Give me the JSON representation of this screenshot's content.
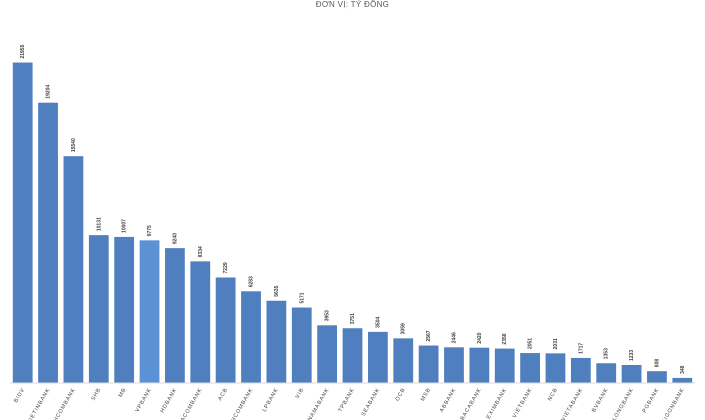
{
  "chart_data": {
    "type": "bar",
    "title": "ĐƠN VỊ: TỶ ĐỒNG",
    "categories": [
      "BIDV",
      "VIETINBANK",
      "TECHCOMBANK",
      "SHB",
      "MB",
      "VPBANK",
      "HDBANK",
      "SACOMBANK",
      "ACB",
      "TECHCOMBANK",
      "LPBANK",
      "VIB",
      "NAMABANK",
      "TPBANK",
      "SEABANK",
      "OCB",
      "MSB",
      "ABBANK",
      "BACABANK",
      "EXIMBANK",
      "VIETBANK",
      "NCB",
      "VIETABANK",
      "BVBANK",
      "KIENLONGBANK",
      "PGBANK",
      "SAIGONBANK"
    ],
    "values": [
      21955,
      19204,
      15540,
      10131,
      10007,
      9775,
      9240,
      8334,
      7229,
      6283,
      5635,
      5171,
      3953,
      3751,
      3504,
      3059,
      2567,
      2446,
      2420,
      2358,
      2051,
      2031,
      1717,
      1353,
      1233,
      808,
      348
    ],
    "ylim": [
      0,
      23500
    ],
    "bar_color": "#4f7fbf",
    "highlight_color": "#5b92d6",
    "highlight_index": 5,
    "grid": false
  }
}
